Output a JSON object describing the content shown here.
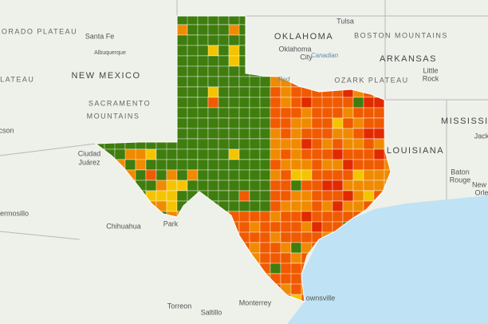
{
  "labels": [
    "COLORADO PLATEAU",
    "Santa Fe",
    "Albuquerque",
    "NEW MEXICO",
    "SACRAMENTO",
    "MOUNTAINS",
    "PLATEAU",
    "cson",
    "Ciudad",
    "Juárez",
    "ermosillo",
    "Chihuahua",
    "Park",
    "Torreon",
    "Saltillo",
    "Monterrey",
    "ownsville",
    "Tulsa",
    "OKLAHOMA",
    "Oklahoma",
    "City",
    "Canadian",
    "Red",
    "BOSTON MOUNTAINS",
    "ARKANSAS",
    "OZARK PLATEAU",
    "Little",
    "Rock",
    "MISSISSIPPI",
    "Jack",
    "LOUISIANA",
    "Baton",
    "Rouge",
    "New",
    "Orle"
  ]
}
